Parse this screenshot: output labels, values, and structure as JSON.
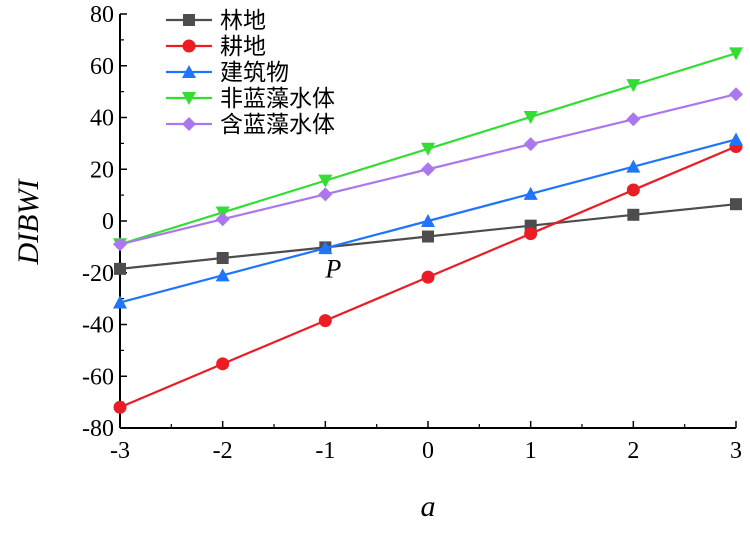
{
  "chart_data": {
    "type": "line",
    "xlabel": "a",
    "ylabel": "DIBWI",
    "x": [
      -3,
      -2,
      -1,
      0,
      1,
      2,
      3
    ],
    "xlim": [
      -3,
      3
    ],
    "ylim": [
      -80,
      80
    ],
    "xticks": [
      "-3",
      "-2",
      "-1",
      "0",
      "1",
      "2",
      "3"
    ],
    "yticks": [
      "80",
      "60",
      "40",
      "20",
      "0",
      "-20",
      "-40",
      "-60",
      "-80"
    ],
    "grid": false,
    "legend_position": "top-left",
    "annotations": [
      {
        "text": "P",
        "x": -1,
        "y": -21
      }
    ],
    "series": [
      {
        "name": "林地",
        "color": "#4d4d4d",
        "marker": "square",
        "values": [
          -18.5,
          -14.3,
          -10.2,
          -6.0,
          -1.8,
          2.4,
          6.5
        ]
      },
      {
        "name": "耕地",
        "color": "#ec1c24",
        "marker": "circle",
        "values": [
          -72.0,
          -55.2,
          -38.5,
          -21.7,
          -4.9,
          12.0,
          28.8
        ]
      },
      {
        "name": "建筑物",
        "color": "#1f75fe",
        "marker": "triangle-up",
        "values": [
          -31.5,
          -21.0,
          -10.5,
          0.0,
          10.5,
          21.0,
          31.5
        ]
      },
      {
        "name": "非蓝藻水体",
        "color": "#33dd33",
        "marker": "triangle-down",
        "values": [
          -9.0,
          3.3,
          15.6,
          27.9,
          40.2,
          52.5,
          64.8
        ]
      },
      {
        "name": "含蓝藻水体",
        "color": "#aa77ee",
        "marker": "diamond",
        "values": [
          -9.0,
          0.7,
          10.3,
          20.0,
          29.7,
          39.3,
          49.0
        ]
      }
    ]
  }
}
